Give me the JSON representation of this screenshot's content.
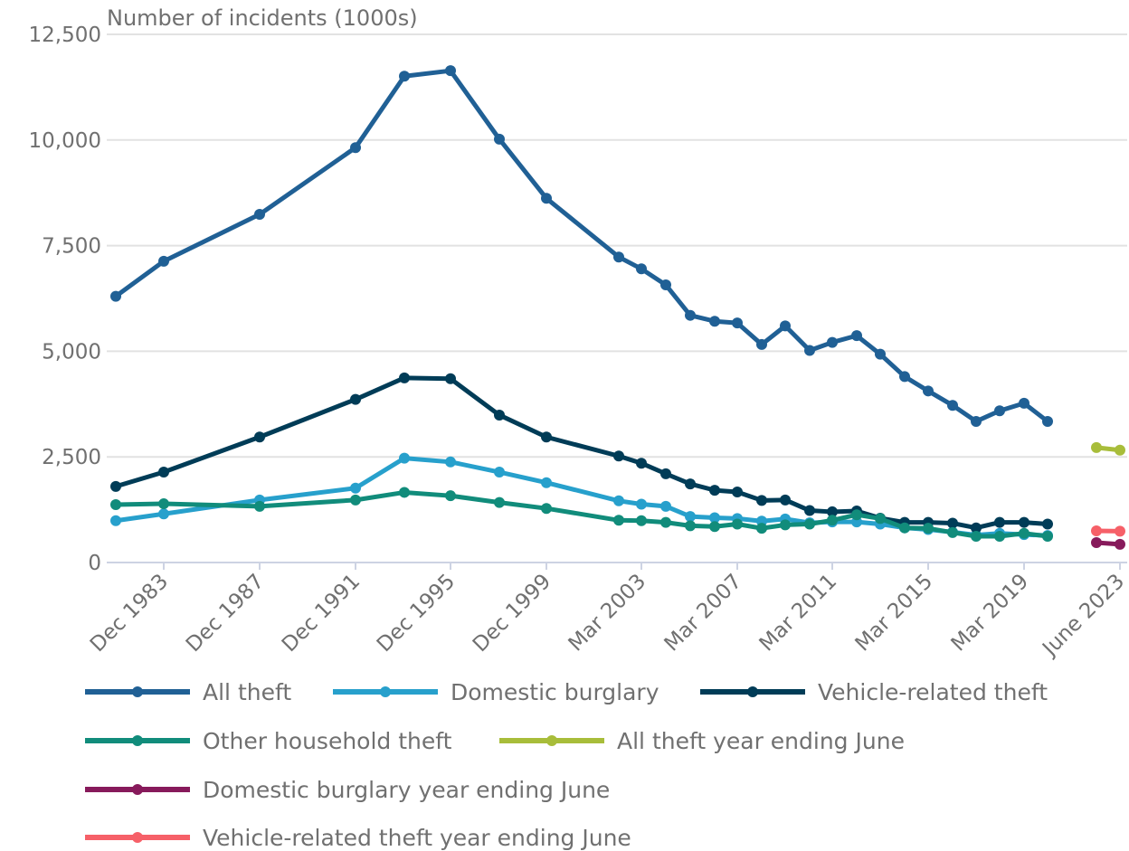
{
  "chart_data": {
    "type": "line",
    "ylabel": "Number of incidents (1000s)",
    "ylim": [
      0,
      12500
    ],
    "yticks": [
      "0",
      "2,500",
      "5,000",
      "7,500",
      "10,000",
      "12,500"
    ],
    "ytick_values": [
      0,
      2500,
      5000,
      7500,
      10000,
      12500
    ],
    "grid": true,
    "legend_position": "bottom",
    "x_categories": [
      "Dec 1981",
      "Dec 1983",
      "Dec 1987",
      "Dec 1991",
      "Dec 1993",
      "Dec 1995",
      "Dec 1997",
      "Dec 1999",
      "Mar 2002",
      "Mar 2003",
      "Mar 2004",
      "Mar 2005",
      "Mar 2006",
      "Mar 2007",
      "Mar 2008",
      "Mar 2009",
      "Mar 2010",
      "Mar 2011",
      "Mar 2012",
      "Mar 2013",
      "Mar 2014",
      "Mar 2015",
      "Mar 2016",
      "Mar 2017",
      "Mar 2018",
      "Mar 2019",
      "Mar 2020",
      "June 2022",
      "June 2023"
    ],
    "x_tick_labels": [
      {
        "category": "Dec 1983",
        "label": "Dec 1983"
      },
      {
        "category": "Dec 1987",
        "label": "Dec 1987"
      },
      {
        "category": "Dec 1991",
        "label": "Dec 1991"
      },
      {
        "category": "Dec 1995",
        "label": "Dec 1995"
      },
      {
        "category": "Dec 1999",
        "label": "Dec 1999"
      },
      {
        "category": "Mar 2003",
        "label": "Mar 2003"
      },
      {
        "category": "Mar 2007",
        "label": "Mar 2007"
      },
      {
        "category": "Mar 2011",
        "label": "Mar 2011"
      },
      {
        "category": "Mar 2015",
        "label": "Mar 2015"
      },
      {
        "category": "Mar 2019",
        "label": "Mar 2019"
      },
      {
        "category": "June 2023",
        "label": "June 2023"
      }
    ],
    "series": [
      {
        "name": "All theft",
        "color": "#206095",
        "x": [
          "Dec 1981",
          "Dec 1983",
          "Dec 1987",
          "Dec 1991",
          "Dec 1993",
          "Dec 1995",
          "Dec 1997",
          "Dec 1999",
          "Mar 2002",
          "Mar 2003",
          "Mar 2004",
          "Mar 2005",
          "Mar 2006",
          "Mar 2007",
          "Mar 2008",
          "Mar 2009",
          "Mar 2010",
          "Mar 2011",
          "Mar 2012",
          "Mar 2013",
          "Mar 2014",
          "Mar 2015",
          "Mar 2016",
          "Mar 2017",
          "Mar 2018",
          "Mar 2019",
          "Mar 2020"
        ],
        "values": [
          6300,
          7130,
          8240,
          9820,
          11510,
          11640,
          10020,
          8620,
          7230,
          6950,
          6570,
          5850,
          5710,
          5670,
          5160,
          5600,
          5020,
          5210,
          5370,
          4930,
          4400,
          4060,
          3720,
          3340,
          3590,
          3770,
          3340
        ]
      },
      {
        "name": "Domestic burglary",
        "color": "#27a0cc",
        "x": [
          "Dec 1981",
          "Dec 1983",
          "Dec 1987",
          "Dec 1991",
          "Dec 1993",
          "Dec 1995",
          "Dec 1997",
          "Dec 1999",
          "Mar 2002",
          "Mar 2003",
          "Mar 2004",
          "Mar 2005",
          "Mar 2006",
          "Mar 2007",
          "Mar 2008",
          "Mar 2009",
          "Mar 2010",
          "Mar 2011",
          "Mar 2012",
          "Mar 2013",
          "Mar 2014",
          "Mar 2015",
          "Mar 2016",
          "Mar 2017",
          "Mar 2018",
          "Mar 2019",
          "Mar 2020"
        ],
        "values": [
          990,
          1150,
          1480,
          1760,
          2470,
          2380,
          2140,
          1890,
          1460,
          1380,
          1330,
          1090,
          1060,
          1040,
          980,
          1030,
          940,
          960,
          960,
          910,
          820,
          780,
          720,
          650,
          690,
          660,
          640
        ]
      },
      {
        "name": "Vehicle-related theft",
        "color": "#003c57",
        "x": [
          "Dec 1981",
          "Dec 1983",
          "Dec 1987",
          "Dec 1991",
          "Dec 1993",
          "Dec 1995",
          "Dec 1997",
          "Dec 1999",
          "Mar 2002",
          "Mar 2003",
          "Mar 2004",
          "Mar 2005",
          "Mar 2006",
          "Mar 2007",
          "Mar 2008",
          "Mar 2009",
          "Mar 2010",
          "Mar 2011",
          "Mar 2012",
          "Mar 2013",
          "Mar 2014",
          "Mar 2015",
          "Mar 2016",
          "Mar 2017",
          "Mar 2018",
          "Mar 2019",
          "Mar 2020"
        ],
        "values": [
          1800,
          2140,
          2970,
          3860,
          4370,
          4350,
          3490,
          2970,
          2520,
          2350,
          2100,
          1860,
          1710,
          1670,
          1470,
          1480,
          1230,
          1200,
          1220,
          1050,
          950,
          950,
          930,
          820,
          950,
          950,
          910
        ]
      },
      {
        "name": "Other household theft",
        "color": "#118c7b",
        "x": [
          "Dec 1981",
          "Dec 1983",
          "Dec 1987",
          "Dec 1991",
          "Dec 1993",
          "Dec 1995",
          "Dec 1997",
          "Dec 1999",
          "Mar 2002",
          "Mar 2003",
          "Mar 2004",
          "Mar 2005",
          "Mar 2006",
          "Mar 2007",
          "Mar 2008",
          "Mar 2009",
          "Mar 2010",
          "Mar 2011",
          "Mar 2012",
          "Mar 2013",
          "Mar 2014",
          "Mar 2015",
          "Mar 2016",
          "Mar 2017",
          "Mar 2018",
          "Mar 2019",
          "Mar 2020"
        ],
        "values": [
          1370,
          1390,
          1330,
          1480,
          1660,
          1580,
          1420,
          1280,
          1000,
          990,
          950,
          870,
          850,
          910,
          810,
          890,
          910,
          1000,
          1130,
          1040,
          820,
          810,
          710,
          620,
          620,
          690,
          620
        ]
      },
      {
        "name": "All theft year ending June",
        "color": "#a8bd3a",
        "x": [
          "June 2022",
          "June 2023"
        ],
        "values": [
          2720,
          2660
        ]
      },
      {
        "name": "Domestic burglary year ending June",
        "color": "#871a5b",
        "x": [
          "June 2022",
          "June 2023"
        ],
        "values": [
          470,
          430
        ]
      },
      {
        "name": "Vehicle-related theft year ending June",
        "color": "#f66068",
        "x": [
          "June 2022",
          "June 2023"
        ],
        "values": [
          750,
          740
        ]
      }
    ]
  }
}
